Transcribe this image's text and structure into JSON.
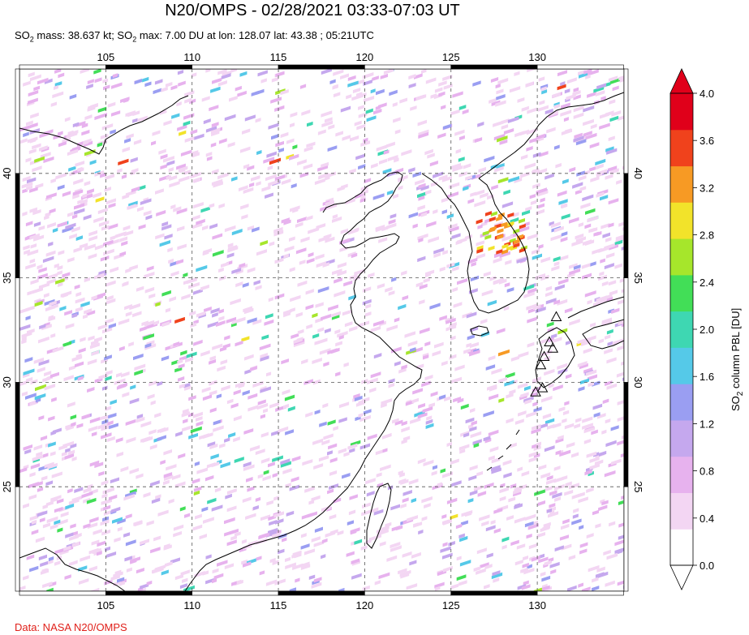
{
  "title": "N20/OMPS - 02/28/2021 03:33-07:03 UT",
  "subtitle": {
    "mass_label": "SO",
    "mass_sub": "2",
    "mass_text": " mass: 38.637 kt; SO",
    "max_sub": "2",
    "max_text": " max: 7.00 DU at lon: 128.07 lat: 43.38 ; 05:21UTC"
  },
  "credit": "Data: NASA N20/OMPS",
  "colorbar": {
    "label": "SO",
    "label_sub": "2",
    "label_rest": " column PBL [DU]",
    "ticks": [
      "0.0",
      "0.4",
      "0.8",
      "1.2",
      "1.6",
      "2.0",
      "2.4",
      "2.8",
      "3.2",
      "3.6",
      "4.0"
    ],
    "colors": [
      "#ffffff",
      "#f3d6f3",
      "#e7b2ee",
      "#c5a8ee",
      "#9a9ef2",
      "#55c9e8",
      "#3ed7b2",
      "#42de57",
      "#a6e62b",
      "#f2e32a",
      "#f79a24",
      "#f0421c",
      "#e0001a"
    ]
  },
  "chart_data": {
    "type": "heatmap",
    "title": "N20/OMPS - 02/28/2021 03:33-07:03 UT",
    "variable": "SO2 column PBL [DU]",
    "lon_range": [
      100,
      135
    ],
    "lat_range": [
      20,
      45
    ],
    "x_ticks": [
      "105",
      "110",
      "115",
      "120",
      "125",
      "130"
    ],
    "y_ticks": [
      "25",
      "30",
      "35",
      "40"
    ],
    "color_range": [
      0.0,
      4.0
    ],
    "grid": true,
    "volcano_markers_lonlat": [
      [
        131.1,
        33.1
      ],
      [
        130.9,
        31.6
      ],
      [
        130.7,
        31.9
      ],
      [
        130.4,
        31.2
      ],
      [
        130.2,
        30.8
      ],
      [
        130.3,
        29.7
      ],
      [
        129.9,
        29.5
      ]
    ],
    "hotspot_lonlat": [
      128.07,
      43.38
    ]
  }
}
